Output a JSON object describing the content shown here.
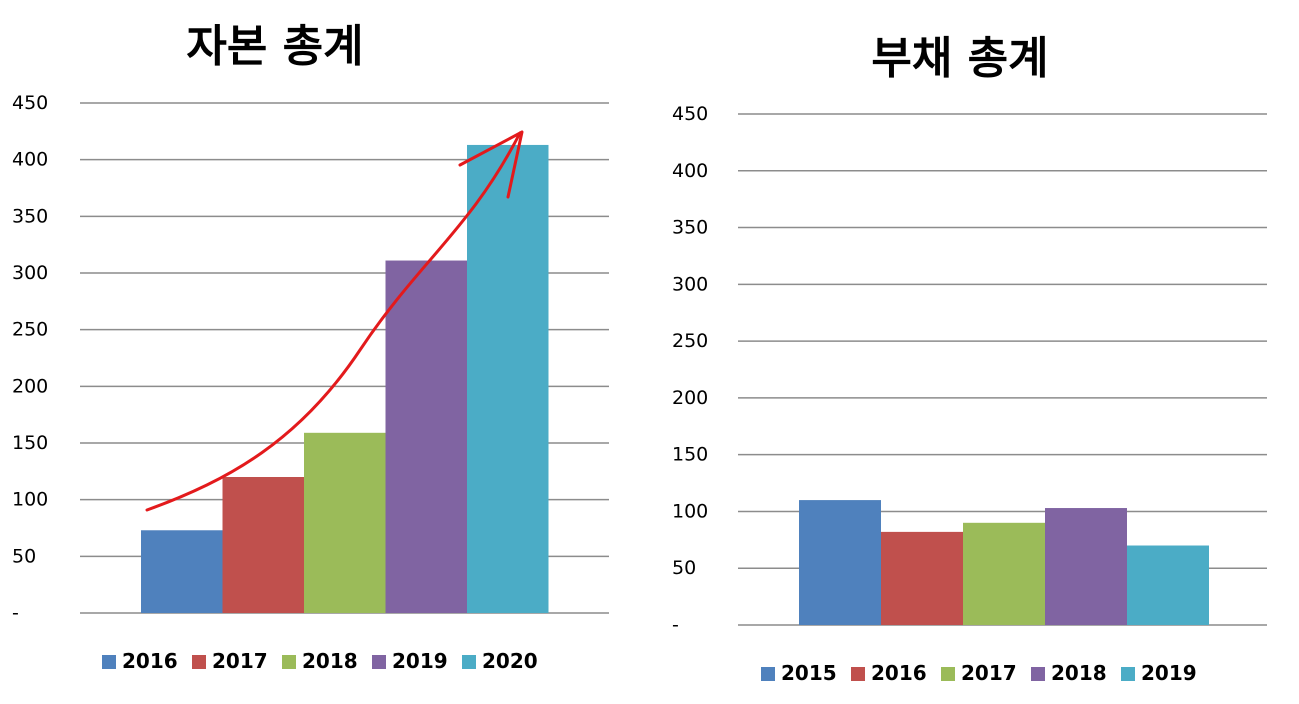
{
  "chart_data": [
    {
      "type": "bar",
      "title": "자본 총계",
      "xlabel": "",
      "ylabel": "",
      "ylim": [
        0,
        450
      ],
      "yticks": [
        "-",
        "50",
        "100",
        "150",
        "200",
        "250",
        "300",
        "350",
        "400",
        "450"
      ],
      "grid": true,
      "legend_position": "bottom",
      "series": [
        {
          "name": "2016",
          "values": [
            73
          ]
        },
        {
          "name": "2017",
          "values": [
            120
          ]
        },
        {
          "name": "2018",
          "values": [
            159
          ]
        },
        {
          "name": "2019",
          "values": [
            311
          ]
        },
        {
          "name": "2020",
          "values": [
            413
          ]
        }
      ],
      "annotation": "red upward trend arrow"
    },
    {
      "type": "bar",
      "title": "부채 총계",
      "xlabel": "",
      "ylabel": "",
      "ylim": [
        0,
        450
      ],
      "yticks": [
        "-",
        "50",
        "100",
        "150",
        "200",
        "250",
        "300",
        "350",
        "400",
        "450"
      ],
      "grid": true,
      "legend_position": "bottom",
      "series": [
        {
          "name": "2015",
          "values": [
            110
          ]
        },
        {
          "name": "2016",
          "values": [
            82
          ]
        },
        {
          "name": "2017",
          "values": [
            90
          ]
        },
        {
          "name": "2018",
          "values": [
            103
          ]
        },
        {
          "name": "2019",
          "values": [
            70
          ]
        }
      ]
    }
  ],
  "colors": [
    "#4f81bd",
    "#c0504d",
    "#9bbb59",
    "#8064a2",
    "#4bacc6"
  ],
  "annotation_color": "#e31a1c"
}
